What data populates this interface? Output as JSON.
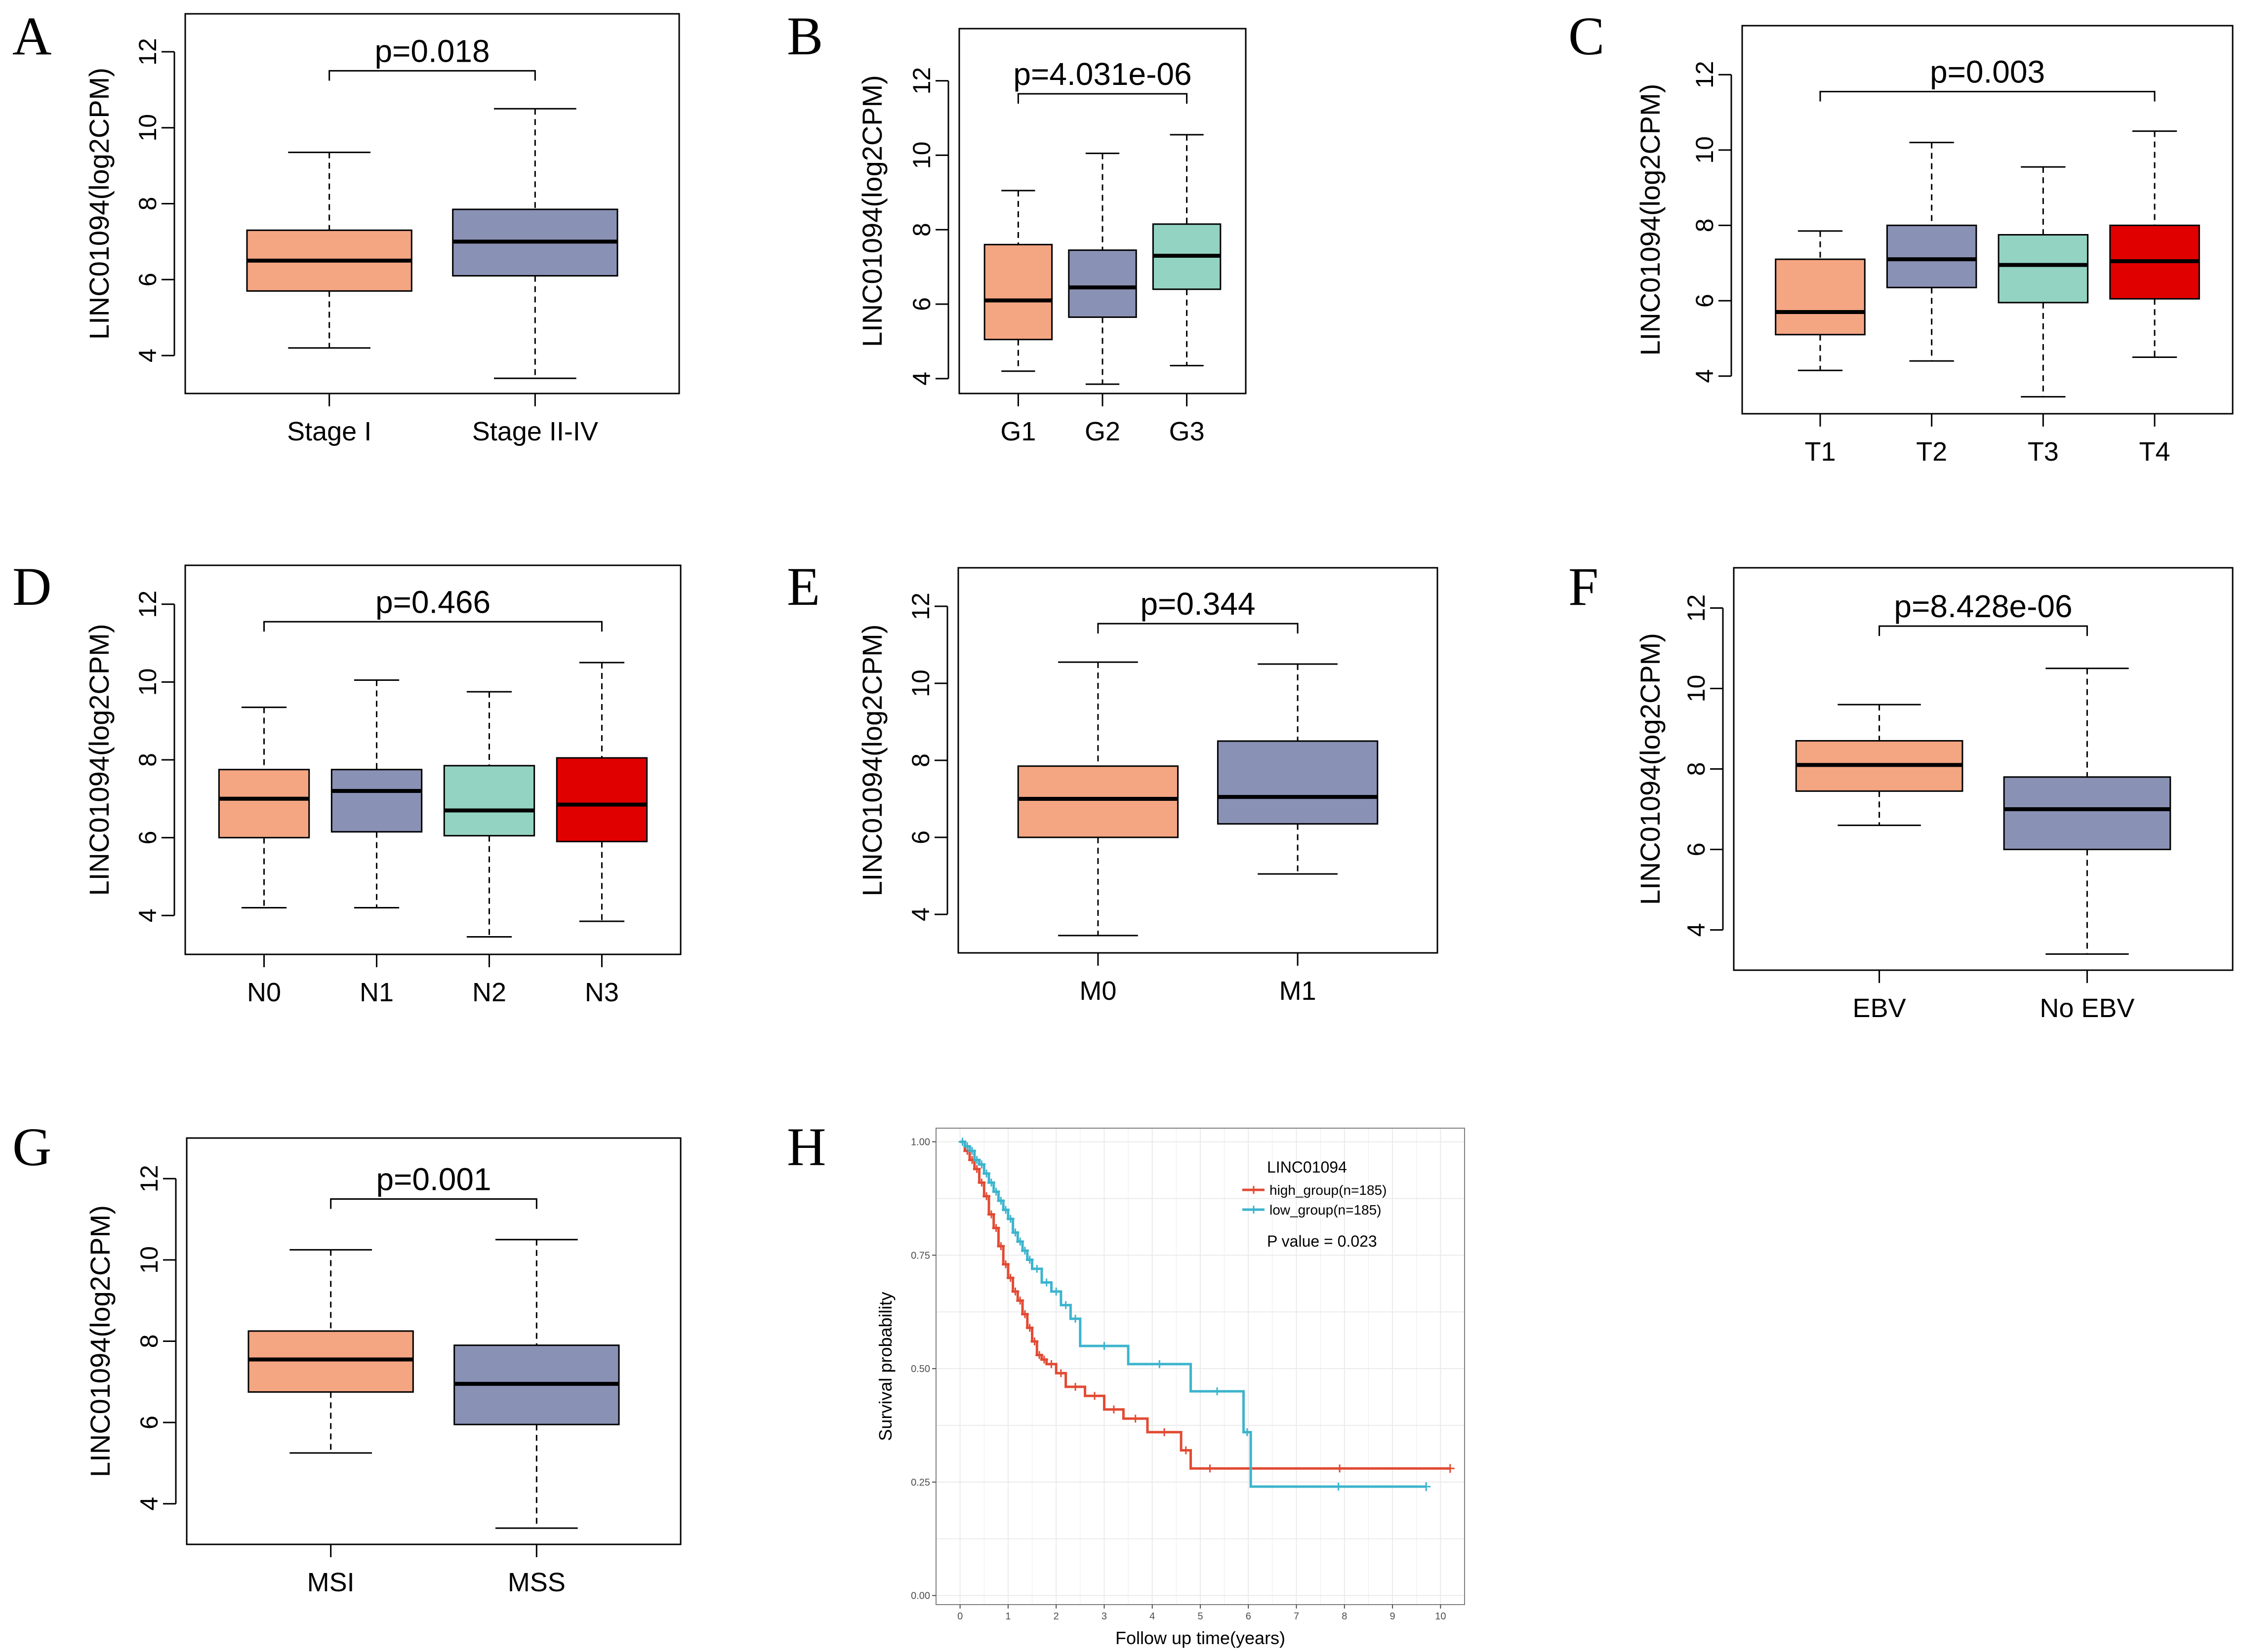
{
  "figure": {
    "background": "#ffffff"
  },
  "colors": {
    "salmon": "#F4A582",
    "slate": "#8991B5",
    "mint": "#93D3C1",
    "red": "#E10000",
    "km_high": "#E24A33",
    "km_low": "#3CB4CD"
  },
  "chart_data": [
    {
      "panel": "A",
      "type": "boxplot",
      "ylabel": "LINC01094(log2CPM)",
      "ylim": [
        3.0,
        13.0
      ],
      "yticks": [
        4,
        6,
        8,
        10,
        12
      ],
      "categories": [
        "Stage I",
        "Stage II-IV"
      ],
      "boxes": [
        {
          "category": "Stage I",
          "min": 4.2,
          "q1": 5.7,
          "median": 6.5,
          "q3": 7.3,
          "max": 9.35,
          "color": "salmon"
        },
        {
          "category": "Stage II-IV",
          "min": 3.4,
          "q1": 6.1,
          "median": 7.0,
          "q3": 7.85,
          "max": 10.5,
          "color": "slate"
        }
      ],
      "comparison": {
        "from": 0,
        "to": 1,
        "label": "p=0.018",
        "y": 11.5
      }
    },
    {
      "panel": "B",
      "type": "boxplot",
      "ylabel": "LINC01094(log2CPM)",
      "ylim": [
        3.6,
        13.4
      ],
      "yticks": [
        4,
        6,
        8,
        10,
        12
      ],
      "categories": [
        "G1",
        "G2",
        "G3"
      ],
      "boxes": [
        {
          "category": "G1",
          "min": 4.2,
          "q1": 5.05,
          "median": 6.1,
          "q3": 7.6,
          "max": 9.05,
          "color": "salmon"
        },
        {
          "category": "G2",
          "min": 3.85,
          "q1": 5.65,
          "median": 6.45,
          "q3": 7.45,
          "max": 10.05,
          "color": "slate"
        },
        {
          "category": "G3",
          "min": 4.35,
          "q1": 6.4,
          "median": 7.3,
          "q3": 8.15,
          "max": 10.55,
          "color": "mint"
        }
      ],
      "comparison": {
        "from": 0,
        "to": 2,
        "label": "p=4.031e-06",
        "y": 11.65
      }
    },
    {
      "panel": "C",
      "type": "boxplot",
      "ylabel": "LINC01094(log2CPM)",
      "ylim": [
        3.0,
        13.3
      ],
      "yticks": [
        4,
        6,
        8,
        10,
        12
      ],
      "categories": [
        "T1",
        "T2",
        "T3",
        "T4"
      ],
      "boxes": [
        {
          "category": "T1",
          "min": 4.15,
          "q1": 5.1,
          "median": 5.7,
          "q3": 7.1,
          "max": 7.85,
          "color": "salmon"
        },
        {
          "category": "T2",
          "min": 4.4,
          "q1": 6.35,
          "median": 7.1,
          "q3": 8.0,
          "max": 10.2,
          "color": "slate"
        },
        {
          "category": "T3",
          "min": 3.45,
          "q1": 5.95,
          "median": 6.95,
          "q3": 7.75,
          "max": 9.55,
          "color": "mint"
        },
        {
          "category": "T4",
          "min": 4.5,
          "q1": 6.05,
          "median": 7.05,
          "q3": 8.0,
          "max": 10.5,
          "color": "red"
        }
      ],
      "comparison": {
        "from": 0,
        "to": 3,
        "label": "p=0.003",
        "y": 11.55
      }
    },
    {
      "panel": "D",
      "type": "boxplot",
      "ylabel": "LINC01094(log2CPM)",
      "ylim": [
        3.0,
        13.0
      ],
      "yticks": [
        4,
        6,
        8,
        10,
        12
      ],
      "categories": [
        "N0",
        "N1",
        "N2",
        "N3"
      ],
      "boxes": [
        {
          "category": "N0",
          "min": 4.2,
          "q1": 6.0,
          "median": 7.0,
          "q3": 7.75,
          "max": 9.35,
          "color": "salmon"
        },
        {
          "category": "N1",
          "min": 4.2,
          "q1": 6.15,
          "median": 7.2,
          "q3": 7.75,
          "max": 10.05,
          "color": "slate"
        },
        {
          "category": "N2",
          "min": 3.45,
          "q1": 6.05,
          "median": 6.7,
          "q3": 7.85,
          "max": 9.75,
          "color": "mint"
        },
        {
          "category": "N3",
          "min": 3.85,
          "q1": 5.9,
          "median": 6.85,
          "q3": 8.05,
          "max": 10.5,
          "color": "red"
        }
      ],
      "comparison": {
        "from": 0,
        "to": 3,
        "label": "p=0.466",
        "y": 11.55
      }
    },
    {
      "panel": "E",
      "type": "boxplot",
      "ylabel": "LINC01094(log2CPM)",
      "ylim": [
        3.0,
        13.0
      ],
      "yticks": [
        4,
        6,
        8,
        10,
        12
      ],
      "categories": [
        "M0",
        "M1"
      ],
      "boxes": [
        {
          "category": "M0",
          "min": 3.45,
          "q1": 6.0,
          "median": 7.0,
          "q3": 7.85,
          "max": 10.55,
          "color": "salmon"
        },
        {
          "category": "M1",
          "min": 5.05,
          "q1": 6.35,
          "median": 7.05,
          "q3": 8.5,
          "max": 10.5,
          "color": "slate"
        }
      ],
      "comparison": {
        "from": 0,
        "to": 1,
        "label": "p=0.344",
        "y": 11.55
      }
    },
    {
      "panel": "F",
      "type": "boxplot",
      "ylabel": "LINC01094(log2CPM)",
      "ylim": [
        3.0,
        13.0
      ],
      "yticks": [
        4,
        6,
        8,
        10,
        12
      ],
      "categories": [
        "EBV",
        "No EBV"
      ],
      "boxes": [
        {
          "category": "EBV",
          "min": 6.6,
          "q1": 7.45,
          "median": 8.1,
          "q3": 8.7,
          "max": 9.6,
          "color": "salmon"
        },
        {
          "category": "No EBV",
          "min": 3.4,
          "q1": 6.0,
          "median": 7.0,
          "q3": 7.8,
          "max": 10.5,
          "color": "slate"
        }
      ],
      "comparison": {
        "from": 0,
        "to": 1,
        "label": "p=8.428e-06",
        "y": 11.55
      }
    },
    {
      "panel": "G",
      "type": "boxplot",
      "ylabel": "LINC01094(log2CPM)",
      "ylim": [
        3.0,
        13.0
      ],
      "yticks": [
        4,
        6,
        8,
        10,
        12
      ],
      "categories": [
        "MSI",
        "MSS"
      ],
      "boxes": [
        {
          "category": "MSI",
          "min": 5.25,
          "q1": 6.75,
          "median": 7.55,
          "q3": 8.25,
          "max": 10.25,
          "color": "salmon"
        },
        {
          "category": "MSS",
          "min": 3.4,
          "q1": 5.95,
          "median": 6.95,
          "q3": 7.9,
          "max": 10.5,
          "color": "slate"
        }
      ],
      "comparison": {
        "from": 0,
        "to": 1,
        "label": "p=0.001",
        "y": 11.5
      }
    },
    {
      "panel": "H",
      "type": "line",
      "xlabel": "Follow up time(years)",
      "ylabel": "Survival probability",
      "xlim": [
        -0.5,
        10.5
      ],
      "ylim": [
        -0.02,
        1.03
      ],
      "xticks": [
        0,
        1,
        2,
        3,
        4,
        5,
        6,
        7,
        8,
        9,
        10
      ],
      "yticks": [
        0.0,
        0.25,
        0.5,
        0.75,
        1.0
      ],
      "ytick_labels": [
        "0.00",
        "0.25",
        "0.50",
        "0.75",
        "1.00"
      ],
      "legend_title": "LINC01094",
      "p_value_label": "P value = 0.023",
      "series": [
        {
          "name": "high_group(n=185)",
          "color": "km_high",
          "x": [
            0,
            0.1,
            0.2,
            0.3,
            0.4,
            0.5,
            0.6,
            0.7,
            0.8,
            0.9,
            1.0,
            1.1,
            1.2,
            1.3,
            1.4,
            1.5,
            1.6,
            1.7,
            1.8,
            2.0,
            2.2,
            2.6,
            3.0,
            3.4,
            3.9,
            4.6,
            4.8,
            5.6,
            10.2
          ],
          "y": [
            1.0,
            0.98,
            0.96,
            0.94,
            0.91,
            0.88,
            0.84,
            0.81,
            0.77,
            0.73,
            0.7,
            0.67,
            0.65,
            0.62,
            0.59,
            0.56,
            0.53,
            0.52,
            0.51,
            0.49,
            0.46,
            0.44,
            0.41,
            0.39,
            0.36,
            0.32,
            0.28,
            0.28,
            0.28
          ]
        },
        {
          "name": "low_group(n=185)",
          "color": "km_low",
          "x": [
            0,
            0.1,
            0.2,
            0.3,
            0.4,
            0.5,
            0.6,
            0.7,
            0.8,
            0.9,
            1.0,
            1.1,
            1.2,
            1.3,
            1.4,
            1.5,
            1.7,
            1.9,
            2.1,
            2.3,
            2.5,
            3.5,
            4.8,
            5.9,
            6.05,
            9.7
          ],
          "y": [
            1.0,
            0.99,
            0.98,
            0.96,
            0.95,
            0.93,
            0.91,
            0.89,
            0.87,
            0.85,
            0.83,
            0.8,
            0.78,
            0.76,
            0.74,
            0.72,
            0.69,
            0.67,
            0.64,
            0.61,
            0.55,
            0.51,
            0.45,
            0.36,
            0.24,
            0.24
          ]
        }
      ]
    }
  ]
}
